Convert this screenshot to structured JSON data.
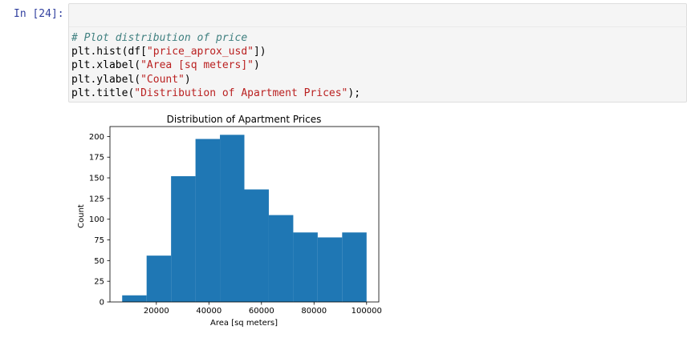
{
  "cell": {
    "prompt": "In [24]:",
    "code": {
      "line1_comment": "# Plot distribution of price",
      "line2_pre": "plt.hist(df[",
      "line2_str": "\"price_aprox_usd\"",
      "line2_post": "])",
      "line3_pre": "plt.xlabel(",
      "line3_str": "\"Area [sq meters]\"",
      "line3_post": ")",
      "line4_pre": "plt.ylabel(",
      "line4_str": "\"Count\"",
      "line4_post": ")",
      "line5_pre": "plt.title(",
      "line5_str": "\"Distribution of Apartment Prices\"",
      "line5_post": ");"
    }
  },
  "colors": {
    "bar": "#1f77b4",
    "prompt": "#303f9f",
    "comment": "#408080",
    "string": "#ba2121",
    "cell_bg": "#f5f5f5"
  },
  "chart_data": {
    "type": "bar",
    "title": "Distribution of Apartment Prices",
    "xlabel": "Area [sq meters]",
    "ylabel": "Count",
    "bin_edges": [
      7000,
      16300,
      25600,
      34900,
      44200,
      53500,
      62800,
      72100,
      81400,
      90700,
      100000
    ],
    "values": [
      8,
      56,
      152,
      197,
      202,
      136,
      105,
      84,
      78,
      84
    ],
    "xlim": [
      2350,
      104650
    ],
    "ylim": [
      0,
      212
    ],
    "xticks": [
      20000,
      40000,
      60000,
      80000,
      100000
    ],
    "xtick_labels": [
      "20000",
      "40000",
      "60000",
      "80000",
      "100000"
    ],
    "yticks": [
      0,
      25,
      50,
      75,
      100,
      125,
      150,
      175,
      200
    ],
    "ytick_labels": [
      "0",
      "25",
      "50",
      "75",
      "100",
      "125",
      "150",
      "175",
      "200"
    ],
    "grid": false,
    "legend": false
  }
}
